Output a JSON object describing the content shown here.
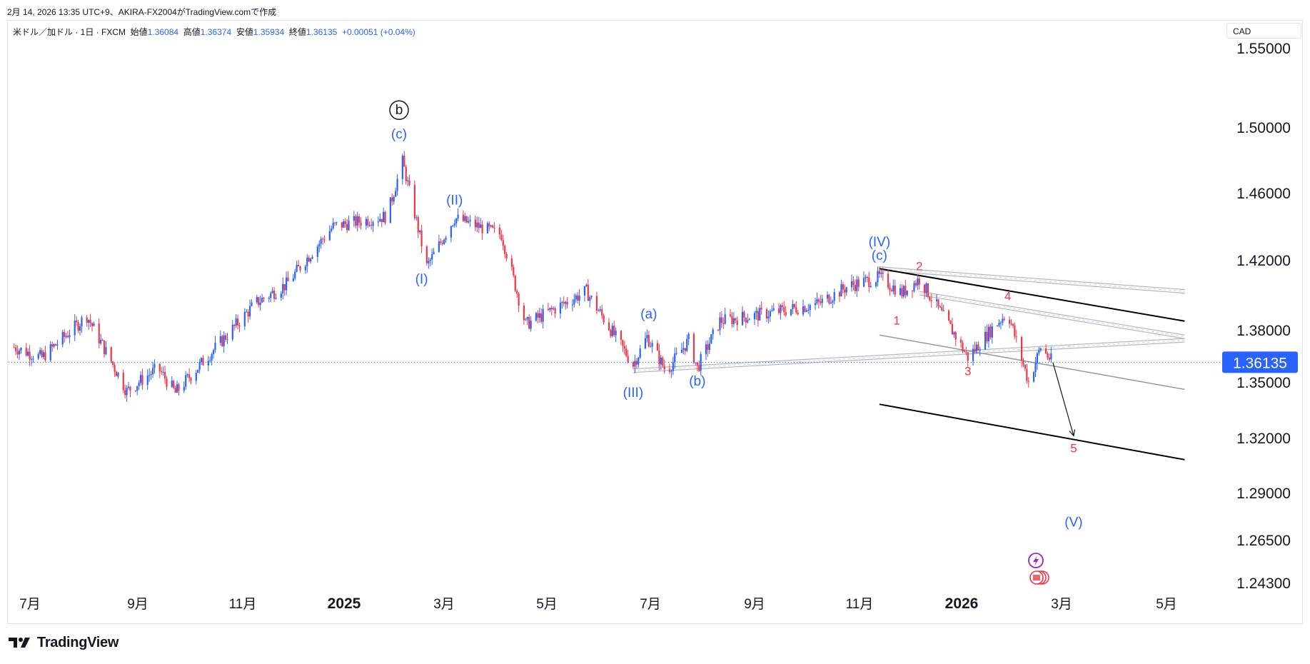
{
  "caption": "2月 14, 2026 13:35 UTC+9、AKIRA-FX2004がTradingView.comで作成",
  "symbol": {
    "name": "米ドル／加ドル · 1日 · FXCM",
    "open_label": "始値",
    "open": "1.36084",
    "high_label": "高値",
    "high": "1.36374",
    "low_label": "安値",
    "low": "1.35934",
    "close_label": "終値",
    "close": "1.36135",
    "change": "+0.00051 (+0.04%)"
  },
  "currency": "CAD",
  "brand": "TradingView",
  "colors": {
    "up": "#2962ff",
    "down": "#f23645",
    "wave_blue": "#2962ff",
    "wave_red": "#f23645",
    "price_tag": "#2962ff"
  },
  "chart_data": {
    "type": "candlestick",
    "y_ticks": [
      "1.55000",
      "1.50000",
      "1.46000",
      "1.42000",
      "1.38000",
      "1.35000",
      "1.32000",
      "1.29000",
      "1.26500",
      "1.24300"
    ],
    "current_price": "1.36135",
    "x_ticks": [
      "7月",
      "9月",
      "11月",
      "2025",
      "3月",
      "5月",
      "7月",
      "9月",
      "11月",
      "2026",
      "3月",
      "5月"
    ],
    "x_tick_bold": [
      false,
      false,
      false,
      true,
      false,
      false,
      false,
      false,
      false,
      true,
      false,
      false
    ],
    "price_path": [
      [
        "2024-06-24",
        1.37
      ],
      [
        "2024-07-10",
        1.364
      ],
      [
        "2024-08-05",
        1.388
      ],
      [
        "2024-08-28",
        1.345
      ],
      [
        "2024-09-15",
        1.358
      ],
      [
        "2024-09-25",
        1.344
      ],
      [
        "2024-11-10",
        1.395
      ],
      [
        "2024-11-28",
        1.406
      ],
      [
        "2024-12-25",
        1.44
      ],
      [
        "2025-01-25",
        1.446
      ],
      [
        "2025-02-03",
        1.479
      ],
      [
        "2025-02-17",
        1.416
      ],
      [
        "2025-03-05",
        1.445
      ],
      [
        "2025-04-01",
        1.435
      ],
      [
        "2025-04-15",
        1.383
      ],
      [
        "2025-05-20",
        1.402
      ],
      [
        "2025-06-16",
        1.36
      ],
      [
        "2025-06-24",
        1.376
      ],
      [
        "2025-07-05",
        1.356
      ],
      [
        "2025-07-18",
        1.374
      ],
      [
        "2025-07-23",
        1.358
      ],
      [
        "2025-08-05",
        1.385
      ],
      [
        "2025-09-05",
        1.39
      ],
      [
        "2025-10-01",
        1.395
      ],
      [
        "2025-10-18",
        1.405
      ],
      [
        "2025-11-05",
        1.41
      ],
      [
        "2025-11-18",
        1.401
      ],
      [
        "2025-11-28",
        1.409
      ],
      [
        "2025-12-18",
        1.378
      ],
      [
        "2025-12-26",
        1.364
      ],
      [
        "2026-01-10",
        1.382
      ],
      [
        "2026-01-18",
        1.39
      ],
      [
        "2026-01-30",
        1.35
      ],
      [
        "2026-02-06",
        1.37
      ],
      [
        "2026-02-13",
        1.3613
      ]
    ],
    "wave_labels": [
      {
        "text": "b",
        "date": "2025-02-01",
        "price": 1.508,
        "color": "black",
        "circled": true
      },
      {
        "text": "(c)",
        "date": "2025-02-01",
        "price": 1.493,
        "color": "blue"
      },
      {
        "text": "(I)",
        "date": "2025-02-14",
        "price": 1.4065,
        "color": "blue"
      },
      {
        "text": "(II)",
        "date": "2025-03-05",
        "price": 1.453,
        "color": "blue"
      },
      {
        "text": "(III)",
        "date": "2025-06-16",
        "price": 1.342,
        "color": "blue"
      },
      {
        "text": "(a)",
        "date": "2025-06-25",
        "price": 1.3865,
        "color": "blue"
      },
      {
        "text": "(b)",
        "date": "2025-07-23",
        "price": 1.348,
        "color": "blue"
      },
      {
        "text": "(IV)",
        "date": "2025-11-05",
        "price": 1.428,
        "color": "blue"
      },
      {
        "text": "(c)",
        "date": "2025-11-05",
        "price": 1.42,
        "color": "blue"
      },
      {
        "text": "1",
        "date": "2025-11-15",
        "price": 1.383,
        "color": "red"
      },
      {
        "text": "2",
        "date": "2025-11-28",
        "price": 1.414,
        "color": "red"
      },
      {
        "text": "3",
        "date": "2025-12-26",
        "price": 1.354,
        "color": "red"
      },
      {
        "text": "4",
        "date": "2026-01-18",
        "price": 1.397,
        "color": "red"
      },
      {
        "text": "5",
        "date": "2026-02-25",
        "price": 1.312,
        "color": "red"
      },
      {
        "text": "(V)",
        "date": "2026-02-25",
        "price": 1.272,
        "color": "blue"
      }
    ],
    "trend_lines": [
      {
        "p1": [
          "2025-11-05",
          1.415
        ],
        "p2": [
          "2026-04-30",
          1.402
        ],
        "style": "double-gray"
      },
      {
        "p1": [
          "2025-11-05",
          1.415
        ],
        "p2": [
          "2026-04-30",
          1.385
        ],
        "style": "black"
      },
      {
        "p1": [
          "2025-11-28",
          1.401
        ],
        "p2": [
          "2026-04-30",
          1.376
        ],
        "style": "double-gray"
      },
      {
        "p1": [
          "2025-06-16",
          1.3565
        ],
        "p2": [
          "2026-04-30",
          1.374
        ],
        "style": "double-gray"
      },
      {
        "p1": [
          "2025-11-05",
          1.377
        ],
        "p2": [
          "2026-04-30",
          1.346
        ],
        "style": "gray"
      },
      {
        "p1": [
          "2025-11-05",
          1.338
        ],
        "p2": [
          "2026-04-30",
          1.308
        ],
        "style": "black"
      }
    ],
    "projection_arrow": {
      "p1": [
        "2026-02-13",
        1.3613
      ],
      "p2": [
        "2026-02-25",
        1.321
      ]
    }
  }
}
